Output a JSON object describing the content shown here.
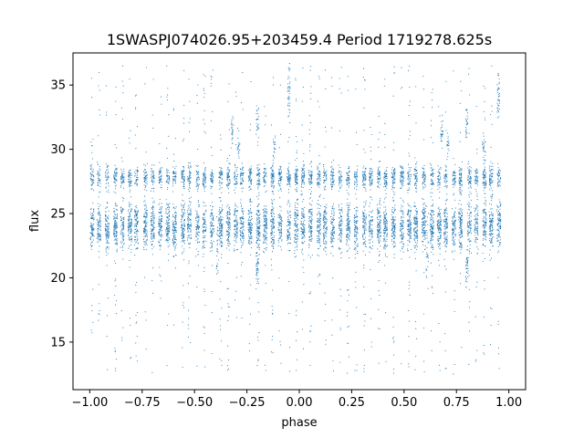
{
  "chart_data": {
    "type": "scatter",
    "title": "1SWASPJ074026.95+203459.4 Period 1719278.625s",
    "xlabel": "phase",
    "ylabel": "flux",
    "xlim": [
      -1.08,
      1.08
    ],
    "ylim": [
      11.3,
      37.5
    ],
    "xticks": [
      -1.0,
      -0.75,
      -0.5,
      -0.25,
      0.0,
      0.25,
      0.5,
      0.75,
      1.0
    ],
    "xtick_labels": [
      "−1.00",
      "−0.75",
      "−0.50",
      "−0.25",
      "0.00",
      "0.25",
      "0.50",
      "0.75",
      "1.00"
    ],
    "yticks": [
      15,
      20,
      25,
      30,
      35
    ],
    "ytick_labels": [
      "15",
      "20",
      "25",
      "30",
      "35"
    ],
    "grid": false,
    "marker_color": "#1f77b4",
    "series": [
      {
        "description_bands": [
          {
            "y_center": 24.0,
            "y_spread": 1.2
          },
          {
            "y_center": 27.8,
            "y_spread": 0.6
          }
        ],
        "sample_points": [
          {
            "x": -0.97,
            "y": 27.8
          },
          {
            "x": -0.97,
            "y": 24.1
          },
          {
            "x": -0.8,
            "y": 36.0
          },
          {
            "x": -0.78,
            "y": 24.5
          },
          {
            "x": -0.6,
            "y": 35.4
          },
          {
            "x": -0.45,
            "y": 28.0
          },
          {
            "x": -0.32,
            "y": 31.5
          },
          {
            "x": -0.29,
            "y": 30.2
          },
          {
            "x": -0.2,
            "y": 32.0
          },
          {
            "x": -0.2,
            "y": 21.0
          },
          {
            "x": -0.05,
            "y": 34.2
          },
          {
            "x": 0.05,
            "y": 24.0
          },
          {
            "x": 0.22,
            "y": 35.5
          },
          {
            "x": 0.45,
            "y": 28.0
          },
          {
            "x": 0.61,
            "y": 22.0
          },
          {
            "x": 0.7,
            "y": 31.5
          },
          {
            "x": 0.79,
            "y": 32.0
          },
          {
            "x": 0.8,
            "y": 21.0
          },
          {
            "x": 0.88,
            "y": 30.5
          },
          {
            "x": 0.95,
            "y": 34.2
          },
          {
            "x": 0.95,
            "y": 24.0
          },
          {
            "x": 0.96,
            "y": 12.7
          }
        ]
      }
    ]
  }
}
